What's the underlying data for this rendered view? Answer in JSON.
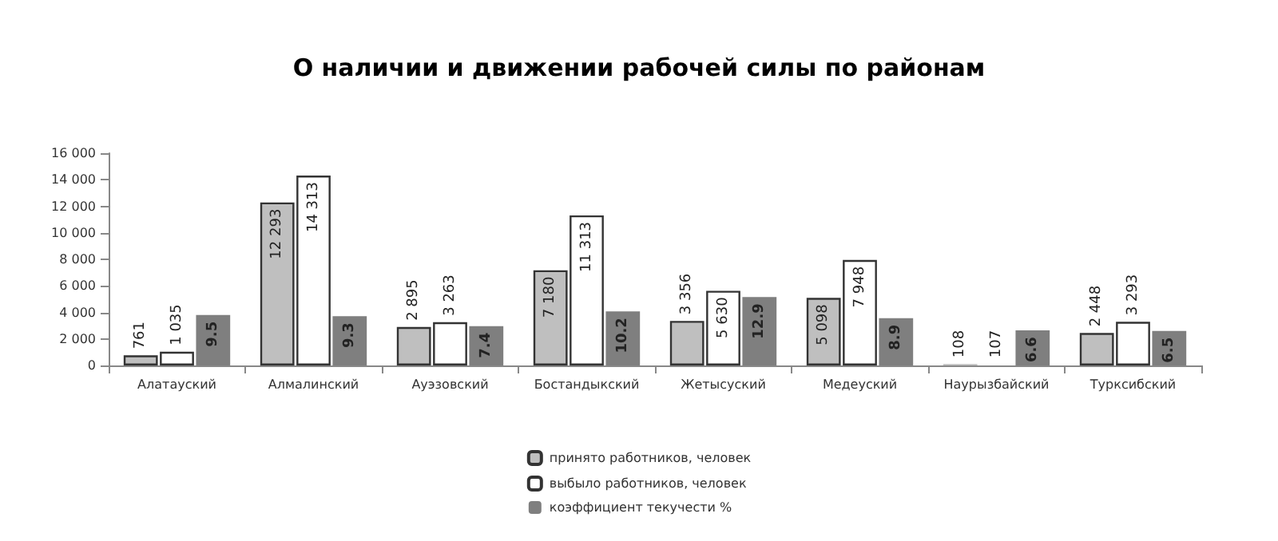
{
  "chart_data": {
    "type": "bar",
    "title": "О наличии и движении рабочей силы по районам",
    "categories": [
      "Алатауский",
      "Алмалинский",
      "Ауэзовский",
      "Бостандыкский",
      "Жетысуский",
      "Медеуский",
      "Наурызбайский",
      "Турксибский"
    ],
    "series": [
      {
        "name": "принято работников, человек",
        "color": "#bfbfbf",
        "values": [
          761,
          12293,
          2895,
          7180,
          3356,
          5098,
          108,
          2448
        ],
        "value_labels": [
          "761",
          "12 293",
          "2 895",
          "7 180",
          "3 356",
          "5 098",
          "108",
          "2 448"
        ]
      },
      {
        "name": "выбыло работников, человек",
        "color": "#ffffff",
        "values": [
          1035,
          14313,
          3263,
          11313,
          5630,
          7948,
          107,
          3293
        ],
        "value_labels": [
          "1 035",
          "14 313",
          "3 263",
          "11 313",
          "5 630",
          "7 948",
          "107",
          "3 293"
        ]
      },
      {
        "name": "коэффициент текучести %",
        "color": "#7f7f7f",
        "axis": "y2",
        "values": [
          9.5,
          9.3,
          7.4,
          10.2,
          12.9,
          8.9,
          6.6,
          6.5
        ],
        "value_labels": [
          "9.5",
          "9.3",
          "7.4",
          "10.2",
          "12.9",
          "8.9",
          "6.6",
          "6.5"
        ]
      }
    ],
    "ylim": [
      0,
      16000
    ],
    "yticks": [
      0,
      {
        "value": 2000,
        "label": "2 000"
      },
      {
        "value": 4000,
        "label": "4 000"
      },
      {
        "value": 6000,
        "label": "6 000"
      },
      {
        "value": 8000,
        "label": "8 000"
      },
      {
        "value": 10000,
        "label": "10 000"
      },
      {
        "value": 12000,
        "label": "12 000"
      },
      {
        "value": 14000,
        "label": "14 000"
      },
      {
        "value": 16000,
        "label": "16 000"
      }
    ],
    "y2lim": [
      0,
      40
    ],
    "tick_labels": "xy",
    "grid": false,
    "legend": "bottom"
  }
}
